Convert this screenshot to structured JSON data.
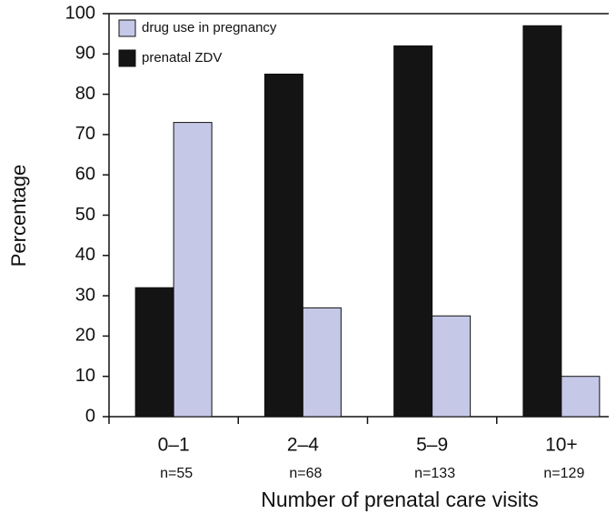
{
  "chart_data": {
    "type": "bar",
    "x_label": "Number of prenatal care visits",
    "y_label": "Percentage",
    "categories": [
      "0–1",
      "2–4",
      "5–9",
      "10+"
    ],
    "category_notes": [
      "n=55",
      "n=68",
      "n=133",
      "n=129"
    ],
    "series": [
      {
        "name": "prenatal ZDV",
        "color": "#141414",
        "values": [
          32,
          85,
          92,
          97
        ]
      },
      {
        "name": "drug use in pregnancy",
        "color": "#c6c8e8",
        "values": [
          73,
          27,
          25,
          10
        ]
      }
    ],
    "ylim": [
      0,
      100
    ],
    "yticks": [
      0,
      10,
      20,
      30,
      40,
      50,
      60,
      70,
      80,
      90,
      100
    ],
    "grid": false,
    "legend": "upper left"
  }
}
